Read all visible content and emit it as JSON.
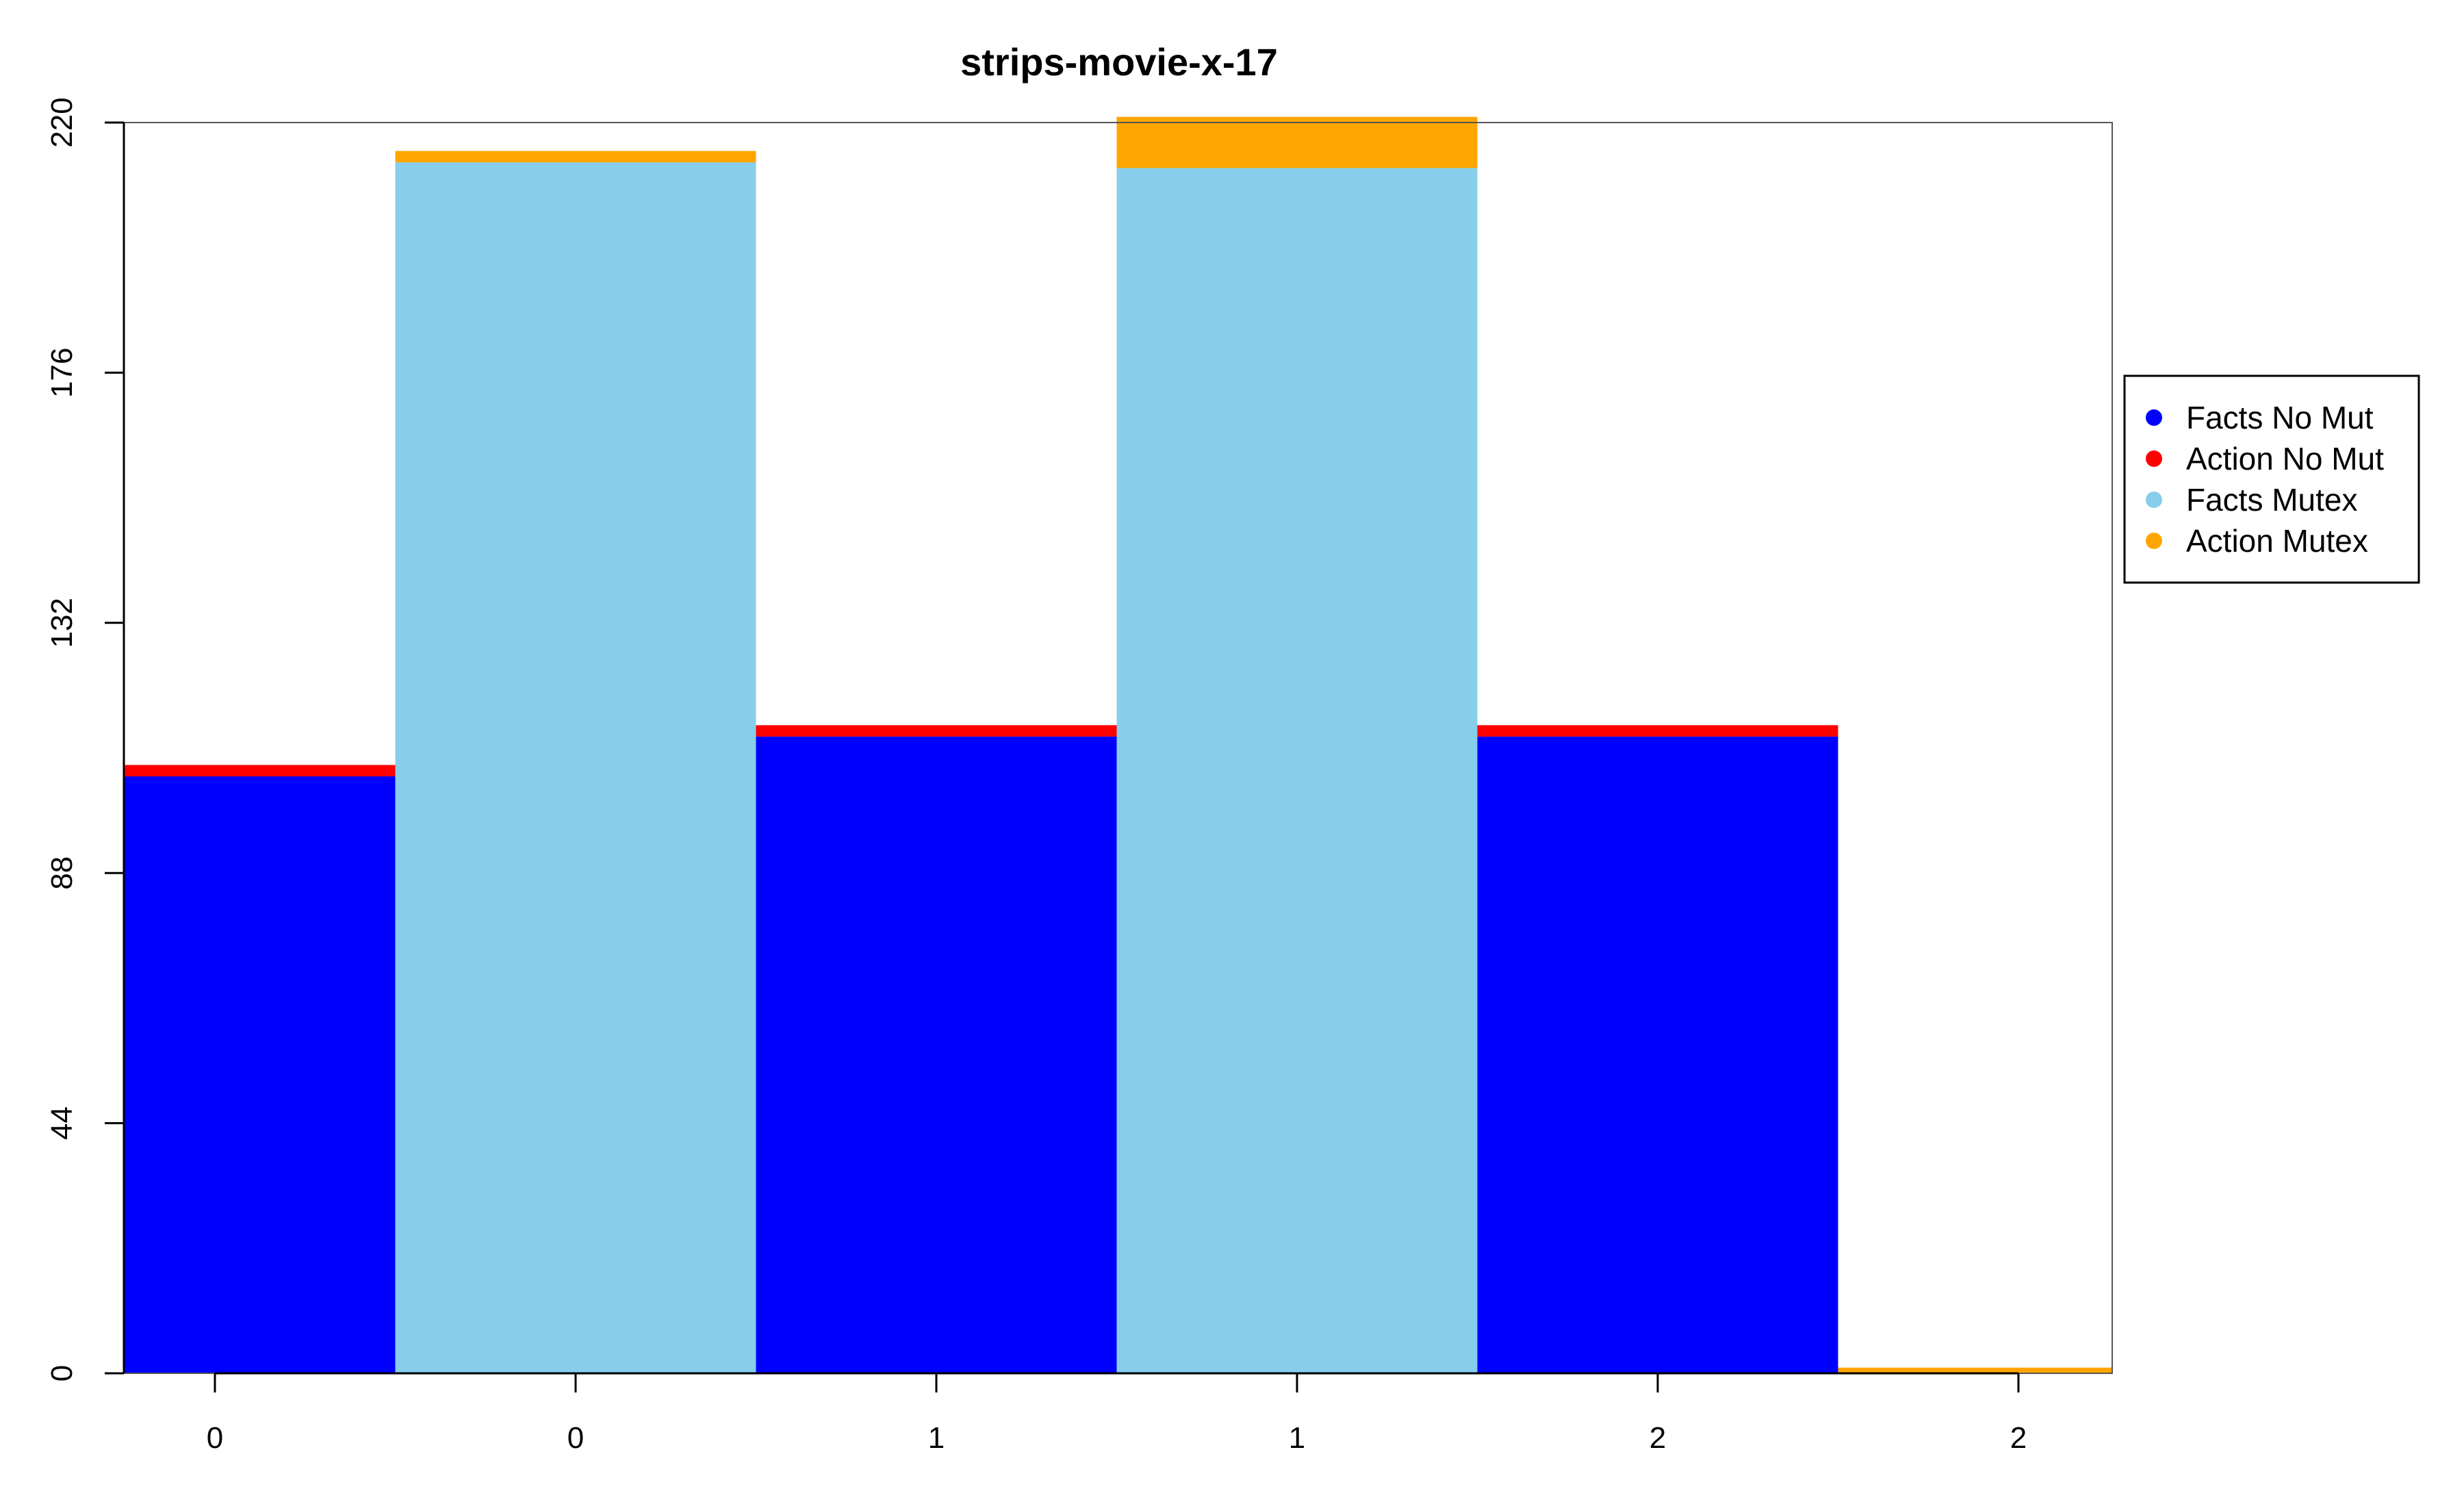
{
  "chart_data": {
    "type": "bar",
    "stacked": true,
    "title": "strips-movie-x-17",
    "xlabel": "",
    "ylabel": "",
    "categories": [
      "0",
      "0",
      "1",
      "1",
      "2",
      "2"
    ],
    "ylim": [
      0,
      220
    ],
    "yticks": [
      0,
      44,
      88,
      132,
      176,
      220
    ],
    "grid": false,
    "legend_position": "right",
    "series": [
      {
        "name": "Facts No Mut",
        "color": "#0000FF",
        "values": [
          105,
          0,
          112,
          0,
          112,
          0
        ]
      },
      {
        "name": "Action No Mut",
        "color": "#FF0000",
        "values": [
          2,
          0,
          2,
          0,
          2,
          0
        ]
      },
      {
        "name": "Facts Mutex",
        "color": "#87CEEB",
        "values": [
          0,
          213,
          0,
          212,
          0,
          0
        ]
      },
      {
        "name": "Action Mutex",
        "color": "#FFA500",
        "values": [
          0,
          2,
          0,
          9,
          0,
          1
        ]
      }
    ]
  }
}
